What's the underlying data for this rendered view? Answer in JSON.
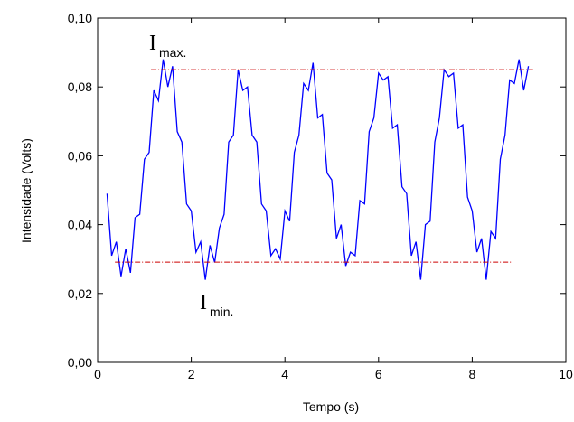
{
  "chart_data": {
    "type": "line",
    "x_label": "Tempo (s)",
    "y_label": "Intensidade (Volts)",
    "xlim": [
      0,
      10
    ],
    "xticks": [
      0,
      2,
      4,
      6,
      8,
      10
    ],
    "ylim": [
      0,
      0.1
    ],
    "yticks": [
      {
        "value": 0,
        "label": "0,00"
      },
      {
        "value": 0.02,
        "label": "0,02"
      },
      {
        "value": 0.04,
        "label": "0,04"
      },
      {
        "value": 0.06,
        "label": "0,06"
      },
      {
        "value": 0.08,
        "label": "0,08"
      },
      {
        "value": 0.1,
        "label": "0,10"
      }
    ],
    "x": [
      0.2,
      0.3,
      0.4,
      0.5,
      0.6,
      0.7,
      0.8,
      0.9,
      1.0,
      1.1,
      1.2,
      1.3,
      1.4,
      1.5,
      1.6,
      1.7,
      1.8,
      1.9,
      2.0,
      2.1,
      2.2,
      2.3,
      2.4,
      2.5,
      2.6,
      2.7,
      2.8,
      2.9,
      3.0,
      3.1,
      3.2,
      3.3,
      3.4,
      3.5,
      3.6,
      3.7,
      3.8,
      3.9,
      4.0,
      4.1,
      4.2,
      4.3,
      4.4,
      4.5,
      4.6,
      4.7,
      4.8,
      4.9,
      5.0,
      5.1,
      5.2,
      5.3,
      5.4,
      5.5,
      5.6,
      5.7,
      5.8,
      5.9,
      6.0,
      6.1,
      6.2,
      6.3,
      6.4,
      6.5,
      6.6,
      6.7,
      6.8,
      6.9,
      7.0,
      7.1,
      7.2,
      7.3,
      7.4,
      7.5,
      7.6,
      7.7,
      7.8,
      7.9,
      8.0,
      8.1,
      8.2,
      8.3,
      8.4,
      8.5,
      8.6,
      8.7,
      8.8,
      8.9,
      9.0,
      9.1,
      9.2
    ],
    "series": [
      {
        "color": "#0000ff",
        "values": [
          0.049,
          0.031,
          0.035,
          0.025,
          0.033,
          0.026,
          0.042,
          0.043,
          0.059,
          0.061,
          0.079,
          0.076,
          0.088,
          0.08,
          0.086,
          0.067,
          0.064,
          0.046,
          0.044,
          0.032,
          0.035,
          0.024,
          0.034,
          0.029,
          0.039,
          0.043,
          0.064,
          0.066,
          0.085,
          0.079,
          0.08,
          0.066,
          0.064,
          0.046,
          0.044,
          0.031,
          0.033,
          0.03,
          0.044,
          0.041,
          0.061,
          0.066,
          0.081,
          0.079,
          0.087,
          0.071,
          0.072,
          0.055,
          0.053,
          0.036,
          0.04,
          0.028,
          0.032,
          0.031,
          0.047,
          0.046,
          0.067,
          0.071,
          0.084,
          0.082,
          0.083,
          0.068,
          0.069,
          0.051,
          0.049,
          0.031,
          0.035,
          0.024,
          0.04,
          0.041,
          0.064,
          0.071,
          0.085,
          0.083,
          0.084,
          0.068,
          0.069,
          0.048,
          0.044,
          0.032,
          0.036,
          0.024,
          0.038,
          0.036,
          0.059,
          0.066,
          0.082,
          0.081,
          0.088,
          0.079,
          0.086
        ]
      }
    ],
    "reference_lines": [
      {
        "y": 0.085,
        "x": [
          1.14,
          9.3
        ],
        "color": "#cc0000"
      },
      {
        "y": 0.0291,
        "x": [
          0.37,
          8.88
        ],
        "color": "#cc0000"
      }
    ],
    "annotations": [
      {
        "text": "I",
        "subscript": "max."
      },
      {
        "text": "I",
        "subscript": "min."
      }
    ]
  }
}
